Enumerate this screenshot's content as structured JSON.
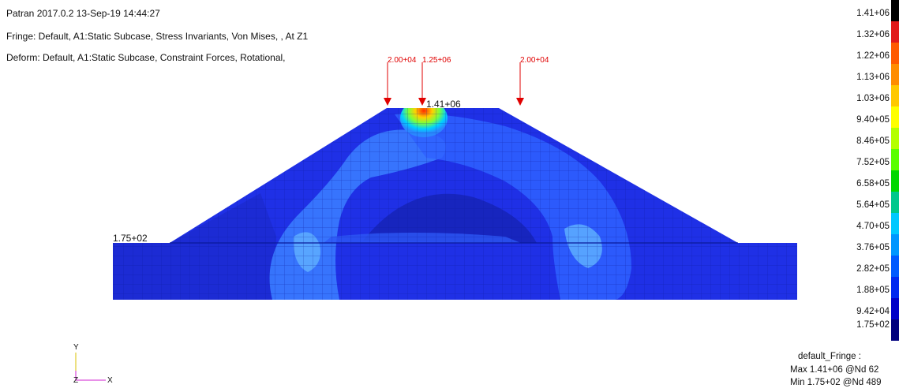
{
  "header": {
    "line1": "Patran 2017.0.2 13-Sep-19 14:44:27",
    "line2": "Fringe: Default, A1:Static Subcase, Stress Invariants, Von Mises, , At Z1",
    "line3": "Deform: Default, A1:Static Subcase, Constraint Forces, Rotational,"
  },
  "loads": {
    "label_left": "2.00+04",
    "label_center": "1.25+06",
    "label_right": "2.00+04"
  },
  "markers": {
    "max_value": "1.41+06",
    "min_value": "1.75+02"
  },
  "legend": {
    "values": [
      "1.41+06",
      "1.32+06",
      "1.22+06",
      "1.13+06",
      "1.03+06",
      "9.40+05",
      "8.46+05",
      "7.52+05",
      "6.58+05",
      "5.64+05",
      "4.70+05",
      "3.76+05",
      "2.82+05",
      "1.88+05",
      "9.42+04",
      "1.75+02"
    ],
    "colors": [
      "#000000",
      "#e11a1a",
      "#ff5a00",
      "#ff8c00",
      "#ffc800",
      "#ffff00",
      "#b4ff00",
      "#5aff00",
      "#00d700",
      "#00c88c",
      "#00c8ff",
      "#0096ff",
      "#005aff",
      "#0028f0",
      "#0000c8",
      "#00007d"
    ],
    "title": "default_Fringe :",
    "max_info": "Max 1.41+06 @Nd 62",
    "min_info": "Min 1.75+02 @Nd 489"
  },
  "axes": {
    "y_label": "Y",
    "z_label": "Z",
    "x_label": "X"
  },
  "colors": {
    "base_blue": "#1f30e6",
    "mid_blue": "#3078ff",
    "load_red": "#e00000",
    "axis_yellow": "#d8c000",
    "axis_magenta": "#d020d0"
  }
}
